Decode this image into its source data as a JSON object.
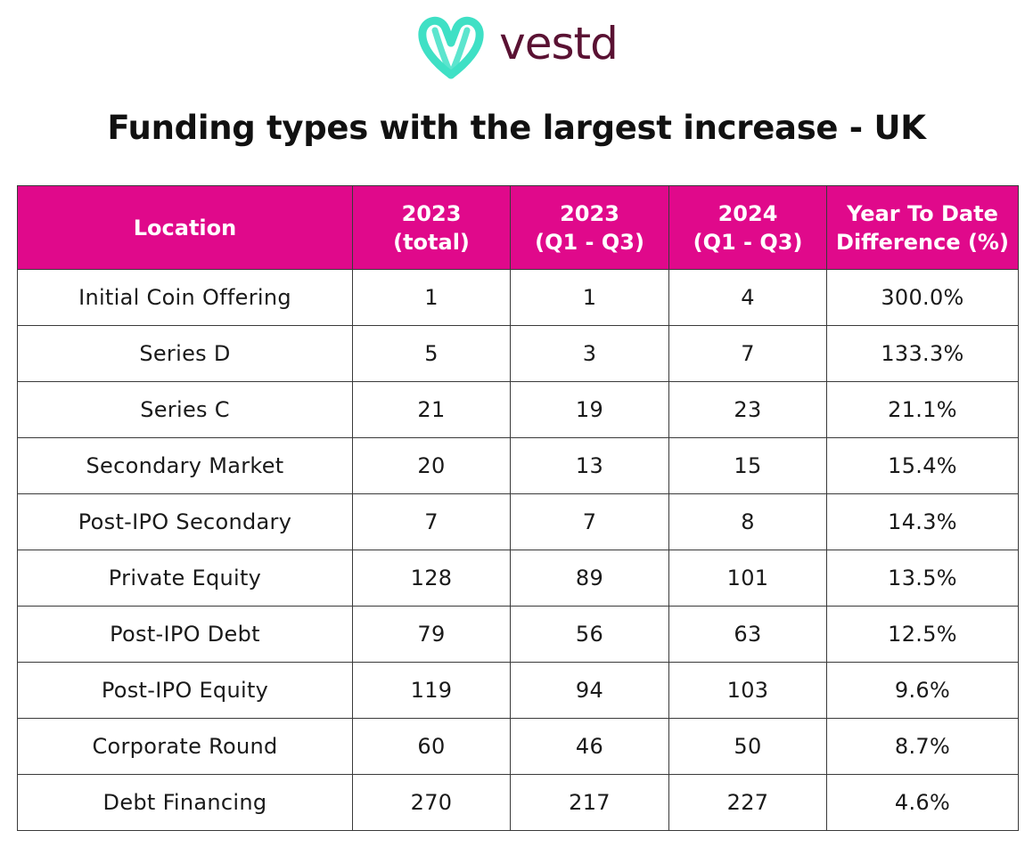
{
  "brand": {
    "name": "vestd",
    "logo_icon": "interlocked-v-heart-logo",
    "logo_icon_color": "#3FE0C5",
    "wordmark_color": "#5A1233"
  },
  "colors": {
    "header_bg": "#E0098B",
    "header_text": "#FFFFFF",
    "grid_line": "#3A3A3A"
  },
  "chart_data": {
    "type": "table",
    "title": "Funding types with the largest increase - UK",
    "columns": [
      "Location",
      "2023\n(total)",
      "2023\n(Q1 - Q3)",
      "2024\n(Q1 - Q3)",
      "Year To Date\nDifference (%)"
    ],
    "rows": [
      [
        "Initial Coin Offering",
        "1",
        "1",
        "4",
        "300.0%"
      ],
      [
        "Series D",
        "5",
        "3",
        "7",
        "133.3%"
      ],
      [
        "Series C",
        "21",
        "19",
        "23",
        "21.1%"
      ],
      [
        "Secondary Market",
        "20",
        "13",
        "15",
        "15.4%"
      ],
      [
        "Post-IPO Secondary",
        "7",
        "7",
        "8",
        "14.3%"
      ],
      [
        "Private Equity",
        "128",
        "89",
        "101",
        "13.5%"
      ],
      [
        "Post-IPO Debt",
        "79",
        "56",
        "63",
        "12.5%"
      ],
      [
        "Post-IPO Equity",
        "119",
        "94",
        "103",
        "9.6%"
      ],
      [
        "Corporate Round",
        "60",
        "46",
        "50",
        "8.7%"
      ],
      [
        "Debt Financing",
        "270",
        "217",
        "227",
        "4.6%"
      ]
    ]
  }
}
